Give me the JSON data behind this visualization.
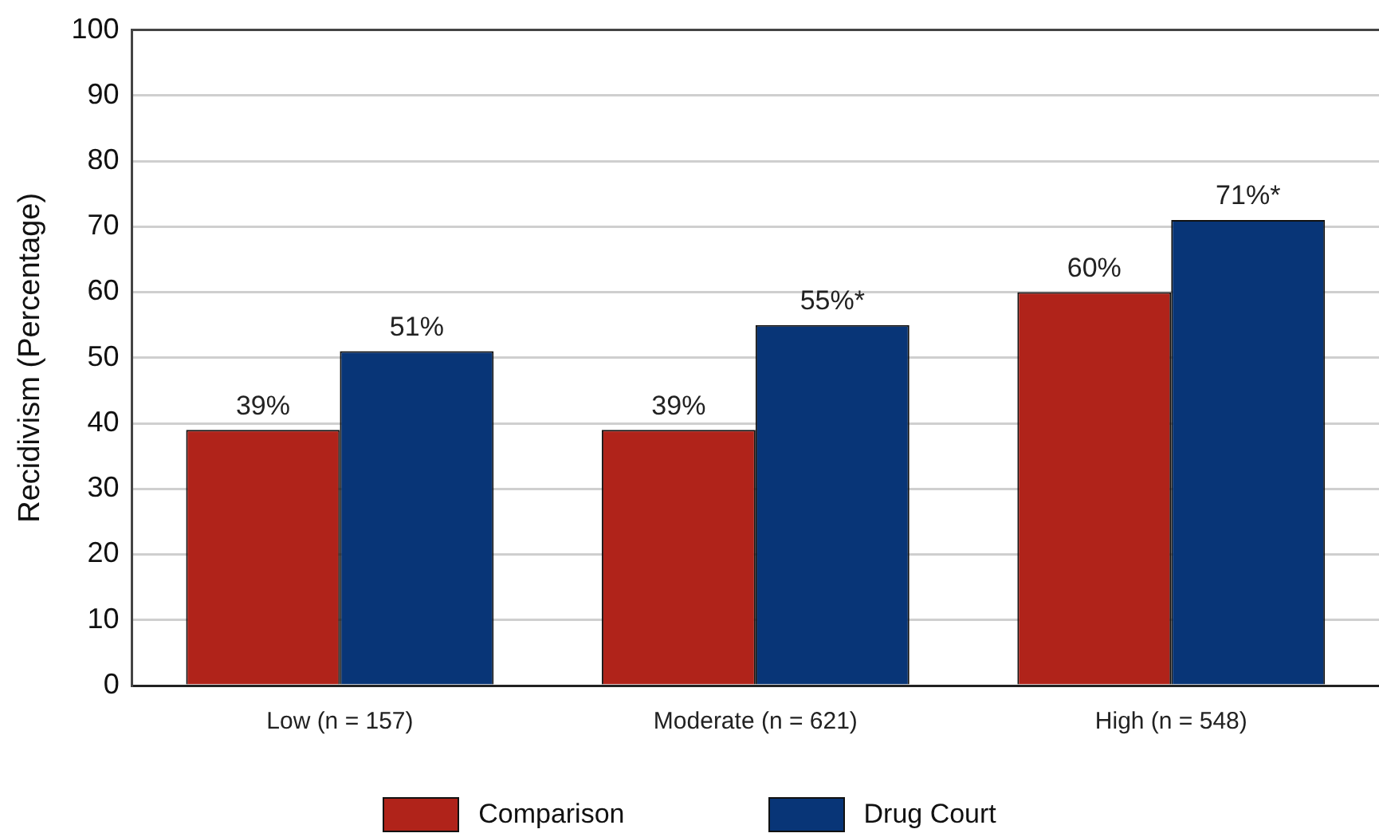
{
  "chart_data": {
    "type": "bar",
    "ylabel": "Recidivism (Percentage)",
    "categories": [
      "Low (n = 157)",
      "Moderate (n = 621)",
      "High (n = 548)"
    ],
    "series": [
      {
        "name": "Comparison",
        "color": "#b0231a",
        "values": [
          39,
          39,
          60
        ],
        "value_labels": [
          "39%",
          "39%",
          "60%"
        ]
      },
      {
        "name": "Drug Court",
        "color": "#083577",
        "values": [
          51,
          55,
          71
        ],
        "value_labels": [
          "51%",
          "55%*",
          "71%*"
        ]
      }
    ],
    "ylim": [
      0,
      100
    ],
    "yticks": [
      0,
      10,
      20,
      30,
      40,
      50,
      60,
      70,
      80,
      90,
      100
    ],
    "grid": "y",
    "legend": "bottom"
  }
}
